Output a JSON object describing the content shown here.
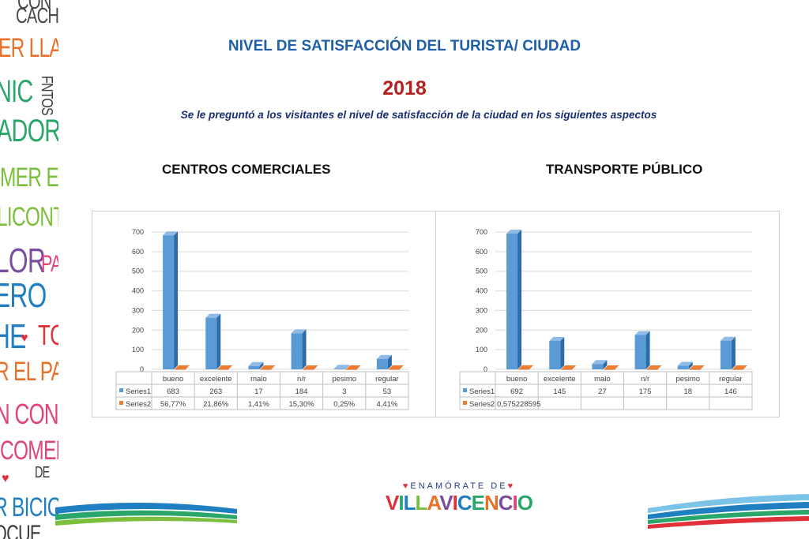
{
  "page": {
    "title": "NIVEL DE SATISFACCIÓN DEL TURISTA/ CIUDAD",
    "year": "2018",
    "subtitle": "Se le preguntó a los visitantes el nivel de satisfacción de la ciudad en los siguientes aspectos"
  },
  "left_strip": {
    "words": [
      {
        "text": "CON",
        "color": "#4a4a4a"
      },
      {
        "text": "CACHA",
        "color": "#4a4a4a"
      },
      {
        "text": "ER LLAN",
        "color": "#e8712a"
      },
      {
        "text": "NIC",
        "color": "#2aa66b"
      },
      {
        "text": "FNTOS",
        "color": "#3a3a3a"
      },
      {
        "text": "ADORE",
        "color": "#2aa66b"
      },
      {
        "text": "MER EL F",
        "color": "#7bbf3c"
      },
      {
        "text": "LICONT",
        "color": "#7bbf3c"
      },
      {
        "text": "LOR",
        "color": "#7b4fa0"
      },
      {
        "text": "PA",
        "color": "#e0457a"
      },
      {
        "text": "ERO",
        "color": "#1f7fc0"
      },
      {
        "text": "HE",
        "color": "#1f7fc0"
      },
      {
        "text": "TC",
        "color": "#e0303a"
      },
      {
        "text": "R EL PARÇ",
        "color": "#e8712a"
      },
      {
        "text": "N CON",
        "color": "#e0457a"
      },
      {
        "text": "COMER",
        "color": "#e0457a"
      },
      {
        "text": "DE",
        "color": "#3a3a3a"
      },
      {
        "text": "R BICIC",
        "color": "#1f7fc0"
      },
      {
        "text": "OCUE",
        "color": "#3a3a3a"
      }
    ]
  },
  "logo": {
    "top_text": "ENAMÓRATE DE",
    "letters": [
      {
        "ch": "V",
        "color": "#e0303a"
      },
      {
        "ch": "I",
        "color": "#2aa66b"
      },
      {
        "ch": "L",
        "color": "#1f7fc0"
      },
      {
        "ch": "L",
        "color": "#7bbf3c"
      },
      {
        "ch": "A",
        "color": "#e8712a"
      },
      {
        "ch": "V",
        "color": "#7b4fa0"
      },
      {
        "ch": "I",
        "color": "#e0303a"
      },
      {
        "ch": "C",
        "color": "#1f7fc0"
      },
      {
        "ch": "E",
        "color": "#2aa66b"
      },
      {
        "ch": "N",
        "color": "#e8712a"
      },
      {
        "ch": "C",
        "color": "#7b4fa0"
      },
      {
        "ch": "I",
        "color": "#e0457a"
      },
      {
        "ch": "O",
        "color": "#2aa66b"
      }
    ]
  },
  "colors": {
    "series1": "#5b9bd5",
    "series1_dark": "#2e6ca8",
    "series2": "#ed7d31",
    "series2_dark": "#b85a1c"
  },
  "chart_data": [
    {
      "type": "bar",
      "title": "CENTROS COMERCIALES",
      "categories": [
        "bueno",
        "excelente",
        "malo",
        "n/r",
        "pesimo",
        "regular"
      ],
      "ylim": [
        0,
        700
      ],
      "yticks": [
        0,
        100,
        200,
        300,
        400,
        500,
        600,
        700
      ],
      "grid": true,
      "legend": "data-table",
      "series": [
        {
          "name": "Series1",
          "values": [
            683,
            263,
            17,
            184,
            3,
            53
          ],
          "labels": [
            "683",
            "263",
            "17",
            "184",
            "3",
            "53"
          ]
        },
        {
          "name": "Series2",
          "values": [
            0.5677,
            0.2186,
            0.0141,
            0.153,
            0.0025,
            0.0441
          ],
          "labels": [
            "56,77%",
            "21,86%",
            "1,41%",
            "15,30%",
            "0,25%",
            "4,41%"
          ]
        }
      ]
    },
    {
      "type": "bar",
      "title": "TRANSPORTE PÚBLICO",
      "categories": [
        "bueno",
        "excelente",
        "malo",
        "n/r",
        "pesimo",
        "regular"
      ],
      "ylim": [
        0,
        700
      ],
      "yticks": [
        0,
        100,
        200,
        300,
        400,
        500,
        600,
        700
      ],
      "grid": true,
      "legend": "data-table",
      "series": [
        {
          "name": "Series1",
          "values": [
            692,
            145,
            27,
            175,
            18,
            146
          ],
          "labels": [
            "692",
            "145",
            "27",
            "175",
            "18",
            "146"
          ]
        },
        {
          "name": "Series2",
          "values": [
            0.575228595,
            0,
            0,
            0,
            0,
            0
          ],
          "labels": [
            "0,575228595",
            "",
            "",
            "",
            "",
            ""
          ]
        }
      ]
    }
  ]
}
